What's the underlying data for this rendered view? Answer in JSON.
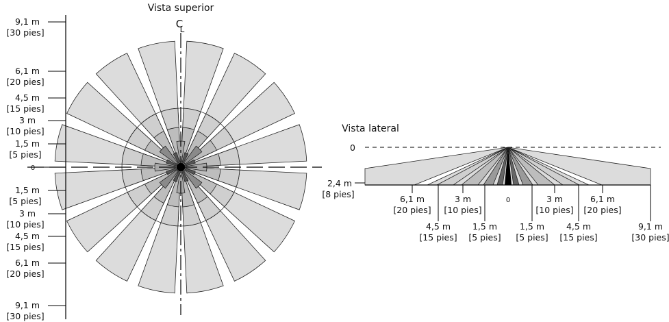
{
  "top_view": {
    "title": "Vista superior",
    "centerline": [
      "C",
      "L"
    ],
    "upper_labels": [
      [
        "9,1 m",
        "[30 pies]"
      ],
      [
        "6,1 m",
        "[20 pies]"
      ],
      [
        "4,5 m",
        "[15 pies]"
      ],
      [
        "3 m",
        "[10 pies]"
      ],
      [
        "1,5 m",
        "[5 pies]"
      ]
    ],
    "zero": "0",
    "lower_labels": [
      [
        "1,5 m",
        "[5 pies]"
      ],
      [
        "3 m",
        "[10 pies]"
      ],
      [
        "4,5 m",
        "[15 pies]"
      ],
      [
        "6,1 m",
        "[20 pies]"
      ],
      [
        "9,1 m",
        "[30 pies]"
      ]
    ]
  },
  "side_view": {
    "title": "Vista lateral",
    "zero": "0",
    "mount": [
      "2,4 m",
      "[8 pies]"
    ],
    "center": "0",
    "ground_labels": [
      [
        "6,1 m",
        "[20 pies]"
      ],
      [
        "4,5 m",
        "[15 pies]"
      ],
      [
        "3 m",
        "[10 pies]"
      ],
      [
        "1,5 m",
        "[5 pies]"
      ],
      [
        "1,5 m",
        "[5 pies]"
      ],
      [
        "3 m",
        "[10 pies]"
      ],
      [
        "4,5 m",
        "[15 pies]"
      ],
      [
        "6,1 m",
        "[20 pies]"
      ],
      [
        "9,1 m",
        "[30 pies]"
      ]
    ]
  }
}
